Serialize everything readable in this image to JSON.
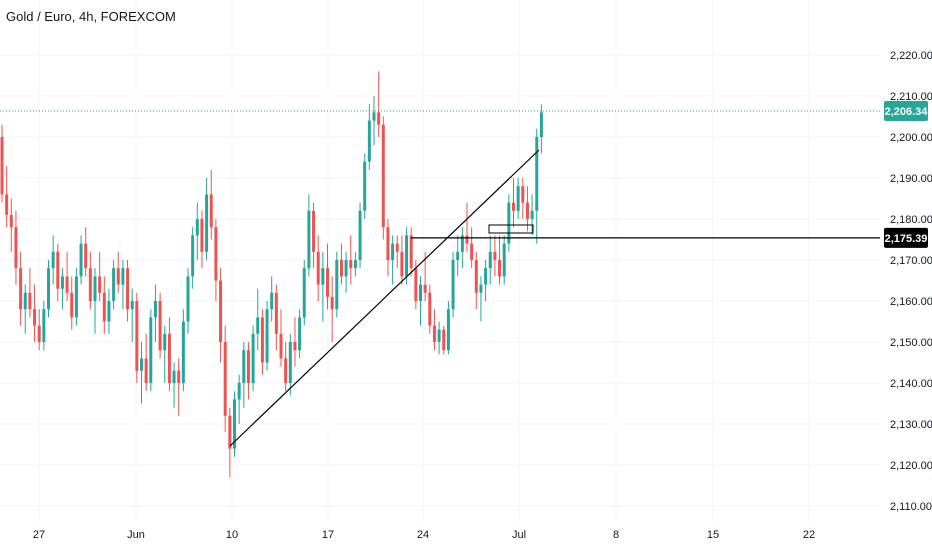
{
  "title": "Gold / Euro, 4h, FOREXCOM",
  "colors": {
    "up": "#26a69a",
    "down": "#ef5350",
    "current_price": "#26a69a",
    "level": "#000000",
    "trendline": "#000000",
    "grid": "#f0f3fa",
    "axis_text": "#131722"
  },
  "price_axis": {
    "ticks": [
      "2,220.00",
      "2,210.00",
      "2,200.00",
      "2,190.00",
      "2,180.00",
      "2,170.00",
      "2,160.00",
      "2,150.00",
      "2,140.00",
      "2,130.00",
      "2,120.00",
      "2,110.00"
    ],
    "current_price_label": "2,206.34",
    "level_label": "2,175.39"
  },
  "time_axis": {
    "ticks": [
      "27",
      "Jun",
      "10",
      "17",
      "24",
      "Jul",
      "8",
      "15",
      "22"
    ]
  },
  "chart_data": {
    "type": "candlestick",
    "title": "Gold / Euro, 4h, FOREXCOM",
    "ylim": [
      2108,
      2225
    ],
    "grid": true,
    "current_price": 2206.34,
    "horizontal_level": 2175.39,
    "candles": [
      [
        2200,
        2203,
        2184,
        2186
      ],
      [
        2186,
        2193,
        2178,
        2181
      ],
      [
        2181,
        2185,
        2172,
        2178
      ],
      [
        2178,
        2182,
        2164,
        2168
      ],
      [
        2168,
        2172,
        2154,
        2158
      ],
      [
        2158,
        2164,
        2152,
        2162
      ],
      [
        2162,
        2168,
        2156,
        2158
      ],
      [
        2158,
        2164,
        2150,
        2154
      ],
      [
        2154,
        2158,
        2148,
        2150
      ],
      [
        2150,
        2160,
        2148,
        2158
      ],
      [
        2158,
        2170,
        2156,
        2168
      ],
      [
        2168,
        2176,
        2164,
        2172
      ],
      [
        2172,
        2174,
        2160,
        2163
      ],
      [
        2163,
        2168,
        2158,
        2166
      ],
      [
        2166,
        2172,
        2160,
        2162
      ],
      [
        2162,
        2166,
        2153,
        2156
      ],
      [
        2156,
        2168,
        2154,
        2166
      ],
      [
        2166,
        2176,
        2164,
        2174
      ],
      [
        2174,
        2178,
        2166,
        2168
      ],
      [
        2168,
        2172,
        2158,
        2160
      ],
      [
        2160,
        2168,
        2152,
        2166
      ],
      [
        2166,
        2172,
        2160,
        2162
      ],
      [
        2162,
        2166,
        2152,
        2155
      ],
      [
        2155,
        2163,
        2152,
        2160
      ],
      [
        2160,
        2170,
        2158,
        2168
      ],
      [
        2168,
        2172,
        2162,
        2164
      ],
      [
        2164,
        2170,
        2158,
        2168
      ],
      [
        2168,
        2170,
        2155,
        2158
      ],
      [
        2158,
        2163,
        2150,
        2160
      ],
      [
        2160,
        2162,
        2140,
        2143
      ],
      [
        2143,
        2150,
        2135,
        2146
      ],
      [
        2146,
        2152,
        2138,
        2140
      ],
      [
        2140,
        2158,
        2138,
        2156
      ],
      [
        2156,
        2164,
        2150,
        2160
      ],
      [
        2160,
        2162,
        2146,
        2148
      ],
      [
        2148,
        2154,
        2140,
        2152
      ],
      [
        2152,
        2156,
        2138,
        2140
      ],
      [
        2140,
        2145,
        2134,
        2143
      ],
      [
        2143,
        2146,
        2132,
        2140
      ],
      [
        2140,
        2158,
        2138,
        2155
      ],
      [
        2155,
        2168,
        2152,
        2166
      ],
      [
        2166,
        2178,
        2163,
        2176
      ],
      [
        2176,
        2184,
        2170,
        2180
      ],
      [
        2180,
        2182,
        2168,
        2172
      ],
      [
        2172,
        2190,
        2170,
        2186
      ],
      [
        2186,
        2192,
        2175,
        2178
      ],
      [
        2178,
        2180,
        2160,
        2165
      ],
      [
        2165,
        2168,
        2145,
        2150
      ],
      [
        2150,
        2154,
        2128,
        2132
      ],
      [
        2132,
        2134,
        2117,
        2124
      ],
      [
        2124,
        2138,
        2122,
        2136
      ],
      [
        2136,
        2142,
        2130,
        2140
      ],
      [
        2140,
        2150,
        2134,
        2148
      ],
      [
        2148,
        2150,
        2136,
        2140
      ],
      [
        2140,
        2154,
        2138,
        2152
      ],
      [
        2152,
        2163,
        2148,
        2156
      ],
      [
        2156,
        2158,
        2142,
        2145
      ],
      [
        2145,
        2160,
        2143,
        2158
      ],
      [
        2158,
        2166,
        2155,
        2162
      ],
      [
        2162,
        2164,
        2148,
        2152
      ],
      [
        2152,
        2158,
        2144,
        2146
      ],
      [
        2146,
        2150,
        2138,
        2140
      ],
      [
        2140,
        2152,
        2137,
        2150
      ],
      [
        2150,
        2156,
        2144,
        2148
      ],
      [
        2148,
        2158,
        2146,
        2156
      ],
      [
        2156,
        2170,
        2154,
        2168
      ],
      [
        2168,
        2186,
        2166,
        2182
      ],
      [
        2182,
        2184,
        2168,
        2172
      ],
      [
        2172,
        2176,
        2160,
        2164
      ],
      [
        2164,
        2172,
        2155,
        2168
      ],
      [
        2168,
        2174,
        2158,
        2161
      ],
      [
        2161,
        2166,
        2150,
        2158
      ],
      [
        2158,
        2172,
        2156,
        2170
      ],
      [
        2170,
        2174,
        2164,
        2166
      ],
      [
        2166,
        2172,
        2162,
        2170
      ],
      [
        2170,
        2176,
        2164,
        2168
      ],
      [
        2168,
        2172,
        2166,
        2170
      ],
      [
        2170,
        2184,
        2168,
        2182
      ],
      [
        2182,
        2196,
        2180,
        2194
      ],
      [
        2194,
        2208,
        2192,
        2204
      ],
      [
        2204,
        2210,
        2198,
        2206
      ],
      [
        2206,
        2216,
        2200,
        2203
      ],
      [
        2203,
        2205,
        2175,
        2178
      ],
      [
        2178,
        2180,
        2166,
        2170
      ],
      [
        2170,
        2176,
        2164,
        2174
      ],
      [
        2174,
        2176,
        2168,
        2172
      ],
      [
        2172,
        2176,
        2164,
        2166
      ],
      [
        2166,
        2178,
        2164,
        2176
      ],
      [
        2176,
        2178,
        2166,
        2168
      ],
      [
        2168,
        2170,
        2158,
        2160
      ],
      [
        2160,
        2166,
        2154,
        2164
      ],
      [
        2164,
        2172,
        2160,
        2162
      ],
      [
        2162,
        2164,
        2152,
        2154
      ],
      [
        2154,
        2158,
        2148,
        2150
      ],
      [
        2150,
        2155,
        2147,
        2153
      ],
      [
        2153,
        2154,
        2147,
        2148
      ],
      [
        2148,
        2160,
        2147,
        2158
      ],
      [
        2158,
        2172,
        2156,
        2170
      ],
      [
        2170,
        2176,
        2166,
        2172
      ],
      [
        2172,
        2178,
        2168,
        2176
      ],
      [
        2176,
        2184,
        2172,
        2174
      ],
      [
        2174,
        2178,
        2168,
        2170
      ],
      [
        2170,
        2172,
        2158,
        2162
      ],
      [
        2162,
        2166,
        2155,
        2164
      ],
      [
        2164,
        2170,
        2160,
        2168
      ],
      [
        2168,
        2176,
        2164,
        2172
      ],
      [
        2172,
        2176,
        2166,
        2170
      ],
      [
        2170,
        2176,
        2164,
        2166
      ],
      [
        2166,
        2176,
        2164,
        2174
      ],
      [
        2174,
        2186,
        2172,
        2184
      ],
      [
        2184,
        2190,
        2178,
        2182
      ],
      [
        2182,
        2190,
        2180,
        2188
      ],
      [
        2188,
        2190,
        2180,
        2184
      ],
      [
        2184,
        2188,
        2177,
        2180
      ],
      [
        2180,
        2186,
        2176,
        2182
      ],
      [
        2182,
        2202,
        2174,
        2200
      ],
      [
        2200,
        2208,
        2196,
        2206
      ]
    ],
    "trendline": [
      [
        2124,
        2194
      ],
      [
        0,
        80
      ]
    ],
    "x_labels": [
      "27",
      "Jun",
      "10",
      "17",
      "24",
      "Jul",
      "8",
      "15",
      "22"
    ]
  }
}
